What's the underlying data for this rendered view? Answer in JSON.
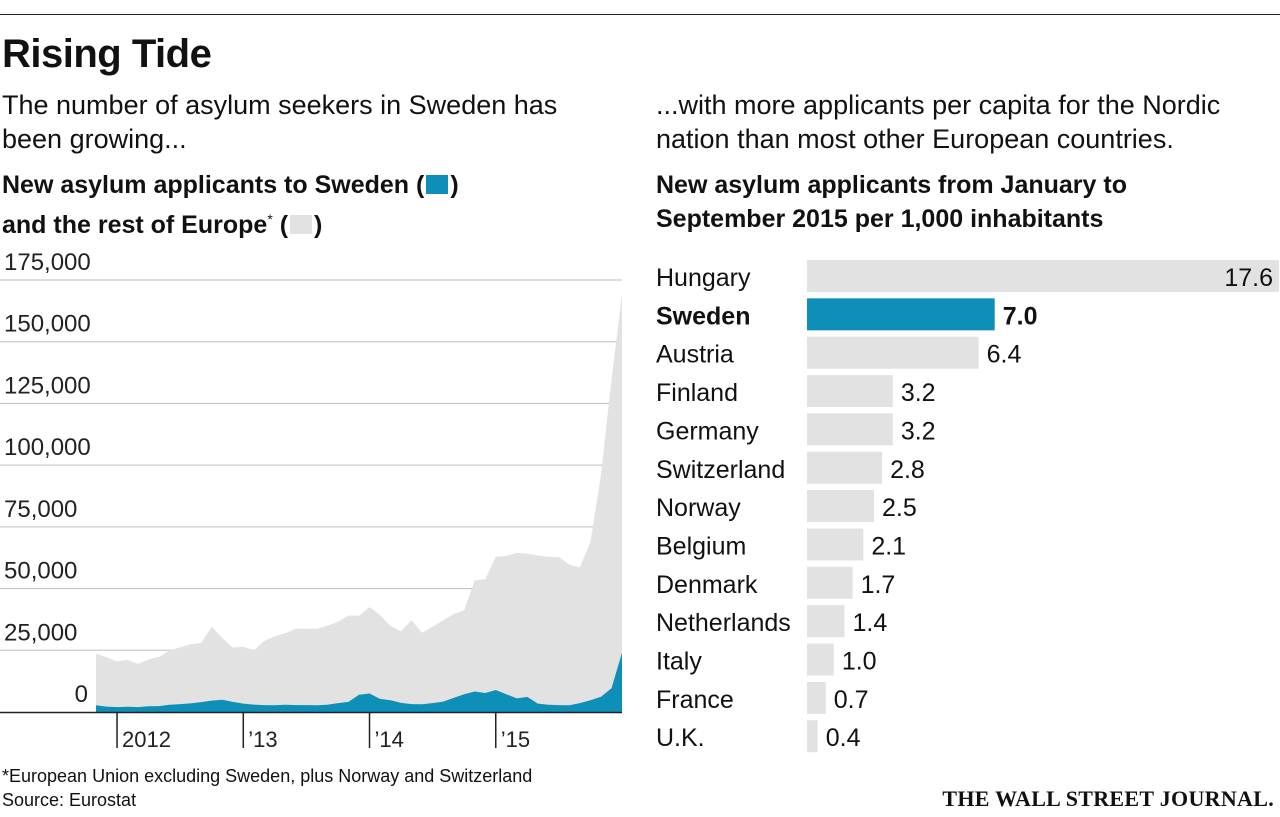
{
  "header": {
    "title": "Rising Tide",
    "left_subtitle": "The number of asylum seekers in Sweden has been growing...",
    "right_subtitle": "...with more applicants per capita for the Nordic nation than most other European countries."
  },
  "colors": {
    "sweden": "#0e8fb8",
    "rest": "#e2e2e2",
    "grid": "#bdbdbd",
    "axis": "#222222"
  },
  "chart_data": [
    {
      "type": "area",
      "title_part1": "New asylum applicants to Sweden (",
      "title_part2": ")",
      "title_line2_part1": "and the rest of Europe",
      "title_asterisk": "*",
      "title_line2_part2": " (",
      "title_line2_part3": ")",
      "ylim": [
        0,
        175000
      ],
      "yticks": [
        "175,000",
        "150,000",
        "125,000",
        "100,000",
        "75,000",
        "50,000",
        "25,000",
        "0"
      ],
      "ytick_values": [
        175000,
        150000,
        125000,
        100000,
        75000,
        50000,
        25000,
        0
      ],
      "xtick_labels": [
        "2012",
        "’13",
        "’14",
        "’15"
      ],
      "months_start": "2011-11",
      "stacked": true,
      "grid": true,
      "series": [
        {
          "name": "Sweden",
          "values": [
            2700,
            2200,
            2000,
            2100,
            2000,
            2300,
            2400,
            2900,
            3200,
            3500,
            4000,
            4600,
            5000,
            4100,
            3400,
            3000,
            2800,
            2700,
            2900,
            2800,
            2800,
            2700,
            2900,
            3600,
            4100,
            7000,
            7500,
            5300,
            4800,
            3700,
            3200,
            3100,
            3600,
            4200,
            5700,
            7200,
            8300,
            7700,
            8900,
            7200,
            5500,
            6100,
            3400,
            2900,
            2800,
            2700,
            3600,
            4800,
            6200,
            9600,
            24000
          ]
        },
        {
          "name": "Rest of Europe",
          "values": [
            21000,
            20000,
            18500,
            19000,
            17500,
            19000,
            20000,
            22000,
            23000,
            24000,
            24000,
            30000,
            25000,
            22000,
            23000,
            22000,
            26000,
            28000,
            29000,
            31000,
            31000,
            31000,
            32000,
            33000,
            35000,
            32000,
            35000,
            34000,
            30000,
            29000,
            34000,
            29000,
            31000,
            33000,
            34000,
            34000,
            45000,
            46000,
            54000,
            56000,
            59000,
            58000,
            60000,
            60000,
            60000,
            57000,
            55000,
            64000,
            90000,
            125000,
            145000
          ]
        }
      ]
    },
    {
      "type": "bar",
      "title_line1": "New asylum applicants from January to",
      "title_line2": "September 2015 per 1,000 inhabitants",
      "highlight": "Sweden",
      "categories": [
        "Hungary",
        "Sweden",
        "Austria",
        "Finland",
        "Germany",
        "Switzerland",
        "Norway",
        "Belgium",
        "Denmark",
        "Netherlands",
        "Italy",
        "France",
        "U.K."
      ],
      "values": [
        17.6,
        7.0,
        6.4,
        3.2,
        3.2,
        2.8,
        2.5,
        2.1,
        1.7,
        1.4,
        1.0,
        0.7,
        0.4
      ],
      "value_labels": [
        "17.6",
        "7.0",
        "6.4",
        "3.2",
        "3.2",
        "2.8",
        "2.5",
        "2.1",
        "1.7",
        "1.4",
        "1.0",
        "0.7",
        "0.4"
      ]
    }
  ],
  "footnote": {
    "line1": "*European Union excluding Sweden, plus Norway and Switzerland",
    "line2": "Source: Eurostat"
  },
  "logo": "THE WALL STREET JOURNAL."
}
